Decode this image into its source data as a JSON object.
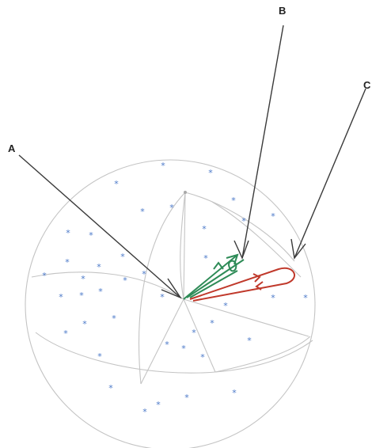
{
  "labels": {
    "a": "A",
    "b": "B",
    "c": "C"
  },
  "colors": {
    "star": "#4a78c8",
    "green_vector": "#2e8b57",
    "red_vector": "#c0392b",
    "sphere_line": "#c4c4c4",
    "callout": "#3a3a3a"
  },
  "star_glyph": "*"
}
